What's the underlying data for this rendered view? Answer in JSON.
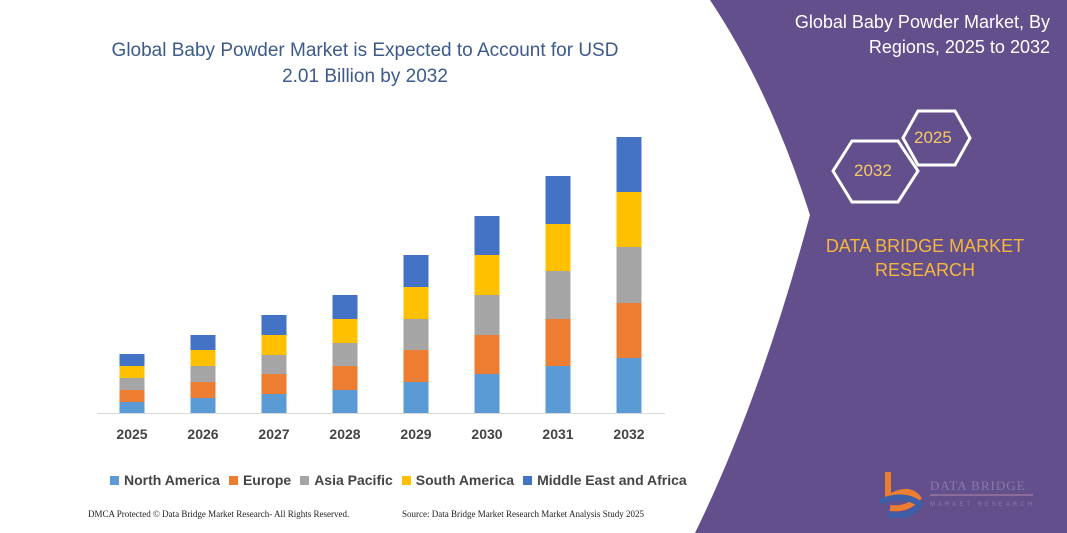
{
  "title": "Global Baby Powder Market is Expected to Account for USD 2.01 Billion by 2032",
  "right_panel": {
    "title": "Global Baby Powder Market, By Regions, 2025 to 2032",
    "hex_years": [
      "2025",
      "2032"
    ],
    "brand": "DATA BRIDGE MARKET RESEARCH",
    "logo_text": "DATA BRIDGE MARKET RESEARCH",
    "color": "#634f8c"
  },
  "footer": {
    "left": "DMCA Protected © Data Bridge Market Research- All Rights Reserved.",
    "right": "Source: Data Bridge Market Research  Market Analysis Study 2025"
  },
  "chart_data": {
    "type": "bar",
    "stacked": true,
    "categories": [
      "2025",
      "2026",
      "2027",
      "2028",
      "2029",
      "2030",
      "2031",
      "2032"
    ],
    "series": [
      {
        "name": "North America",
        "color": "#5b9bd5",
        "values": [
          11,
          15,
          19,
          23,
          31,
          39,
          47,
          55
        ]
      },
      {
        "name": "Europe",
        "color": "#ed7d31",
        "values": [
          12,
          16,
          20,
          24,
          32,
          39,
          47,
          55
        ]
      },
      {
        "name": "Asia Pacific",
        "color": "#a5a5a5",
        "values": [
          12,
          16,
          19,
          23,
          31,
          40,
          48,
          56
        ]
      },
      {
        "name": "South America",
        "color": "#ffc000",
        "values": [
          12,
          16,
          20,
          24,
          32,
          40,
          47,
          55
        ]
      },
      {
        "name": "Middle East and Africa",
        "color": "#4472c4",
        "values": [
          12,
          15,
          20,
          24,
          32,
          39,
          48,
          55
        ]
      }
    ],
    "xlabel": "",
    "ylabel": "",
    "grid": false,
    "legend": "bottom"
  }
}
